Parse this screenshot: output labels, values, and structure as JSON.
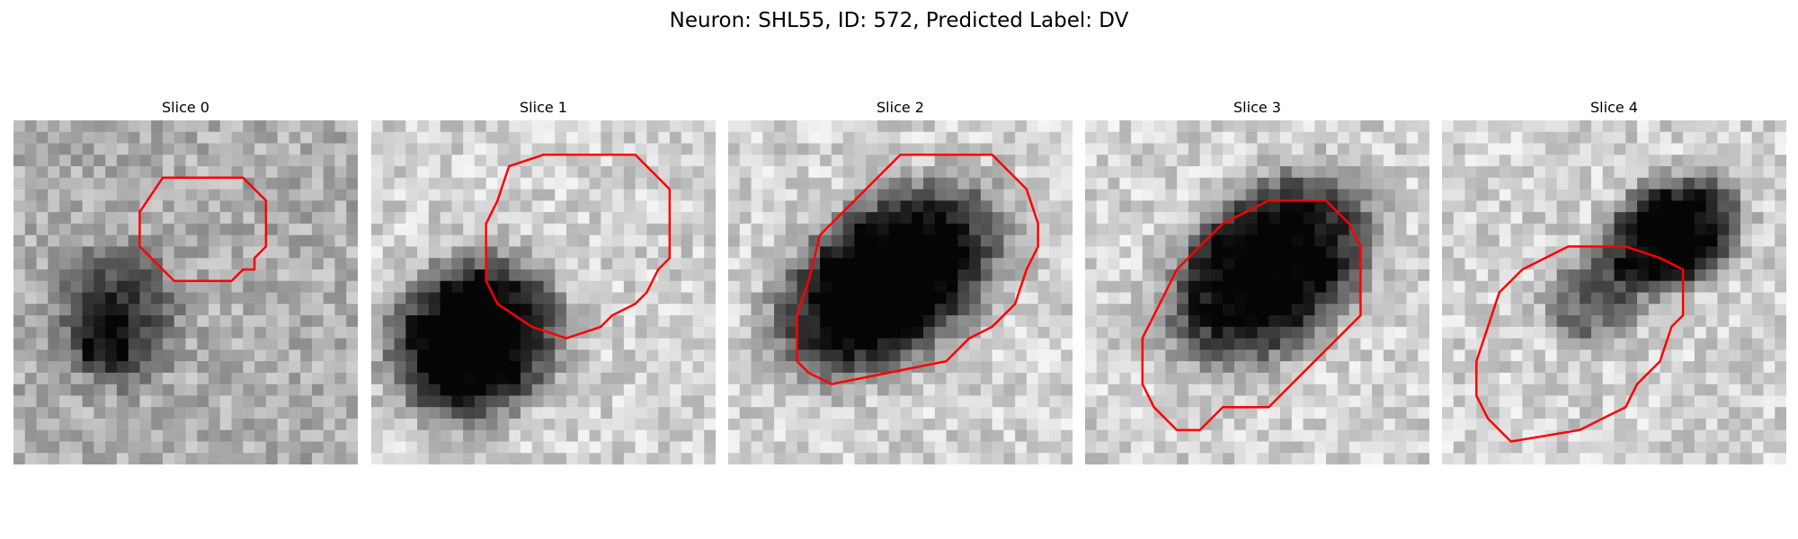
{
  "figure": {
    "suptitle": "Neuron: SHL55, ID: 572, Predicted Label: DV",
    "outline_color": "#ff0000"
  },
  "panels": [
    {
      "title": "Slice 0"
    },
    {
      "title": "Slice 1"
    },
    {
      "title": "Slice 2"
    },
    {
      "title": "Slice 3"
    },
    {
      "title": "Slice 4"
    }
  ]
}
